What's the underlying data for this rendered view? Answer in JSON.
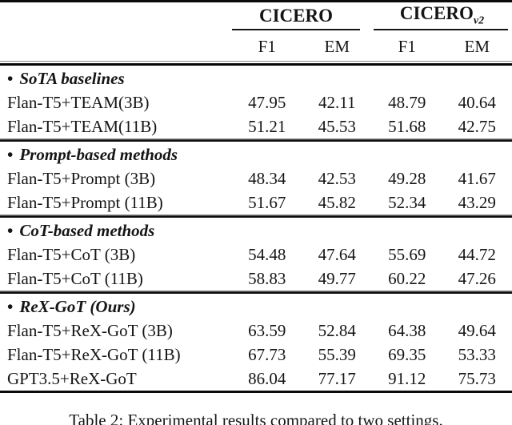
{
  "table": {
    "bullet": "•",
    "col_groups": [
      {
        "label": "CICERO",
        "sub": ""
      },
      {
        "label": "CICERO",
        "sub": "v2"
      }
    ],
    "metric_headers": [
      "F1",
      "EM",
      "F1",
      "EM"
    ],
    "sections": [
      {
        "header": "SoTA baselines",
        "rows": [
          {
            "name": "Flan-T5+TEAM(3B)",
            "values": [
              "47.95",
              "42.11",
              "48.79",
              "40.64"
            ]
          },
          {
            "name": "Flan-T5+TEAM(11B)",
            "values": [
              "51.21",
              "45.53",
              "51.68",
              "42.75"
            ]
          }
        ]
      },
      {
        "header": "Prompt-based methods",
        "rows": [
          {
            "name": "Flan-T5+Prompt (3B)",
            "values": [
              "48.34",
              "42.53",
              "49.28",
              "41.67"
            ]
          },
          {
            "name": "Flan-T5+Prompt (11B)",
            "values": [
              "51.67",
              "45.82",
              "52.34",
              "43.29"
            ]
          }
        ]
      },
      {
        "header": "CoT-based methods",
        "rows": [
          {
            "name": "Flan-T5+CoT (3B)",
            "values": [
              "54.48",
              "47.64",
              "55.69",
              "44.72"
            ]
          },
          {
            "name": "Flan-T5+CoT (11B)",
            "values": [
              "58.83",
              "49.77",
              "60.22",
              "47.26"
            ]
          }
        ]
      },
      {
        "header": "ReX-GoT (Ours)",
        "rows": [
          {
            "name": "Flan-T5+ReX-GoT (3B)",
            "values": [
              "63.59",
              "52.84",
              "64.38",
              "49.64"
            ]
          },
          {
            "name": "Flan-T5+ReX-GoT (11B)",
            "values": [
              "67.73",
              "55.39",
              "69.35",
              "53.33"
            ]
          },
          {
            "name": "GPT3.5+ReX-GoT",
            "values": [
              "86.04",
              "77.17",
              "91.12",
              "75.73"
            ]
          }
        ]
      }
    ]
  },
  "caption": "Table 2: Experimental results compared to two settings."
}
